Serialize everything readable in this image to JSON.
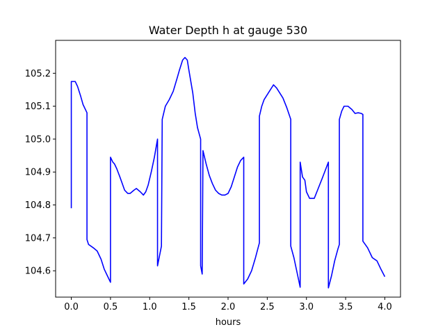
{
  "chart_data": {
    "type": "line",
    "title": "Water Depth h at gauge 530",
    "xlabel": "hours",
    "ylabel": "",
    "xlim": [
      -0.2,
      4.2
    ],
    "ylim": [
      104.52,
      105.3
    ],
    "xticks": [
      0.0,
      0.5,
      1.0,
      1.5,
      2.0,
      2.5,
      3.0,
      3.5,
      4.0
    ],
    "xtick_labels": [
      "0.0",
      "0.5",
      "1.0",
      "1.5",
      "2.0",
      "2.5",
      "3.0",
      "3.5",
      "4.0"
    ],
    "yticks": [
      104.6,
      104.7,
      104.8,
      104.9,
      105.0,
      105.1,
      105.2
    ],
    "ytick_labels": [
      "104.6",
      "104.7",
      "104.8",
      "104.9",
      "105.0",
      "105.1",
      "105.2"
    ],
    "grid": false,
    "colors": {
      "line": "#0000ff",
      "frame": "#000000",
      "background": "#ffffff"
    },
    "series": [
      {
        "color": "#0000ff",
        "points": [
          [
            0.0,
            104.79
          ],
          [
            0.0,
            105.175
          ],
          [
            0.05,
            105.175
          ],
          [
            0.08,
            105.16
          ],
          [
            0.12,
            105.13
          ],
          [
            0.15,
            105.105
          ],
          [
            0.2,
            105.08
          ],
          [
            0.2,
            104.695
          ],
          [
            0.22,
            104.68
          ],
          [
            0.28,
            104.67
          ],
          [
            0.33,
            104.66
          ],
          [
            0.38,
            104.635
          ],
          [
            0.42,
            104.605
          ],
          [
            0.46,
            104.585
          ],
          [
            0.5,
            104.565
          ],
          [
            0.5,
            104.945
          ],
          [
            0.53,
            104.93
          ],
          [
            0.55,
            104.925
          ],
          [
            0.58,
            104.91
          ],
          [
            0.62,
            104.885
          ],
          [
            0.65,
            104.865
          ],
          [
            0.68,
            104.845
          ],
          [
            0.72,
            104.835
          ],
          [
            0.75,
            104.835
          ],
          [
            0.8,
            104.845
          ],
          [
            0.83,
            104.85
          ],
          [
            0.88,
            104.84
          ],
          [
            0.92,
            104.83
          ],
          [
            0.95,
            104.84
          ],
          [
            0.98,
            104.86
          ],
          [
            1.02,
            104.9
          ],
          [
            1.06,
            104.945
          ],
          [
            1.1,
            105.0
          ],
          [
            1.1,
            104.615
          ],
          [
            1.15,
            104.675
          ],
          [
            1.16,
            105.06
          ],
          [
            1.2,
            105.1
          ],
          [
            1.25,
            105.12
          ],
          [
            1.3,
            105.145
          ],
          [
            1.35,
            105.185
          ],
          [
            1.38,
            105.21
          ],
          [
            1.42,
            105.24
          ],
          [
            1.45,
            105.248
          ],
          [
            1.48,
            105.24
          ],
          [
            1.5,
            105.21
          ],
          [
            1.55,
            105.14
          ],
          [
            1.58,
            105.08
          ],
          [
            1.61,
            105.035
          ],
          [
            1.65,
            105.0
          ],
          [
            1.65,
            104.615
          ],
          [
            1.67,
            104.59
          ],
          [
            1.68,
            104.965
          ],
          [
            1.72,
            104.925
          ],
          [
            1.76,
            104.89
          ],
          [
            1.8,
            104.865
          ],
          [
            1.84,
            104.845
          ],
          [
            1.88,
            104.835
          ],
          [
            1.92,
            104.83
          ],
          [
            1.96,
            104.83
          ],
          [
            2.0,
            104.835
          ],
          [
            2.04,
            104.855
          ],
          [
            2.08,
            104.885
          ],
          [
            2.12,
            104.915
          ],
          [
            2.16,
            104.935
          ],
          [
            2.2,
            104.945
          ],
          [
            2.2,
            104.56
          ],
          [
            2.25,
            104.575
          ],
          [
            2.3,
            104.6
          ],
          [
            2.35,
            104.64
          ],
          [
            2.4,
            104.685
          ],
          [
            2.4,
            105.07
          ],
          [
            2.43,
            105.1
          ],
          [
            2.46,
            105.12
          ],
          [
            2.5,
            105.135
          ],
          [
            2.54,
            105.15
          ],
          [
            2.58,
            105.165
          ],
          [
            2.62,
            105.155
          ],
          [
            2.66,
            105.14
          ],
          [
            2.7,
            105.125
          ],
          [
            2.75,
            105.095
          ],
          [
            2.8,
            105.06
          ],
          [
            2.8,
            104.675
          ],
          [
            2.84,
            104.64
          ],
          [
            2.88,
            104.595
          ],
          [
            2.92,
            104.55
          ],
          [
            2.92,
            104.93
          ],
          [
            2.95,
            104.885
          ],
          [
            2.98,
            104.875
          ],
          [
            3.0,
            104.84
          ],
          [
            3.04,
            104.82
          ],
          [
            3.1,
            104.82
          ],
          [
            3.15,
            104.85
          ],
          [
            3.2,
            104.88
          ],
          [
            3.24,
            104.905
          ],
          [
            3.28,
            104.93
          ],
          [
            3.28,
            104.548
          ],
          [
            3.32,
            104.585
          ],
          [
            3.36,
            104.63
          ],
          [
            3.4,
            104.665
          ],
          [
            3.42,
            104.68
          ],
          [
            3.42,
            105.06
          ],
          [
            3.45,
            105.085
          ],
          [
            3.48,
            105.1
          ],
          [
            3.5,
            105.1
          ],
          [
            3.53,
            105.1
          ],
          [
            3.58,
            105.09
          ],
          [
            3.62,
            105.078
          ],
          [
            3.66,
            105.08
          ],
          [
            3.7,
            105.078
          ],
          [
            3.72,
            105.075
          ],
          [
            3.72,
            104.69
          ],
          [
            3.78,
            104.67
          ],
          [
            3.84,
            104.64
          ],
          [
            3.9,
            104.63
          ],
          [
            3.95,
            104.605
          ],
          [
            4.0,
            104.582
          ]
        ]
      }
    ]
  }
}
